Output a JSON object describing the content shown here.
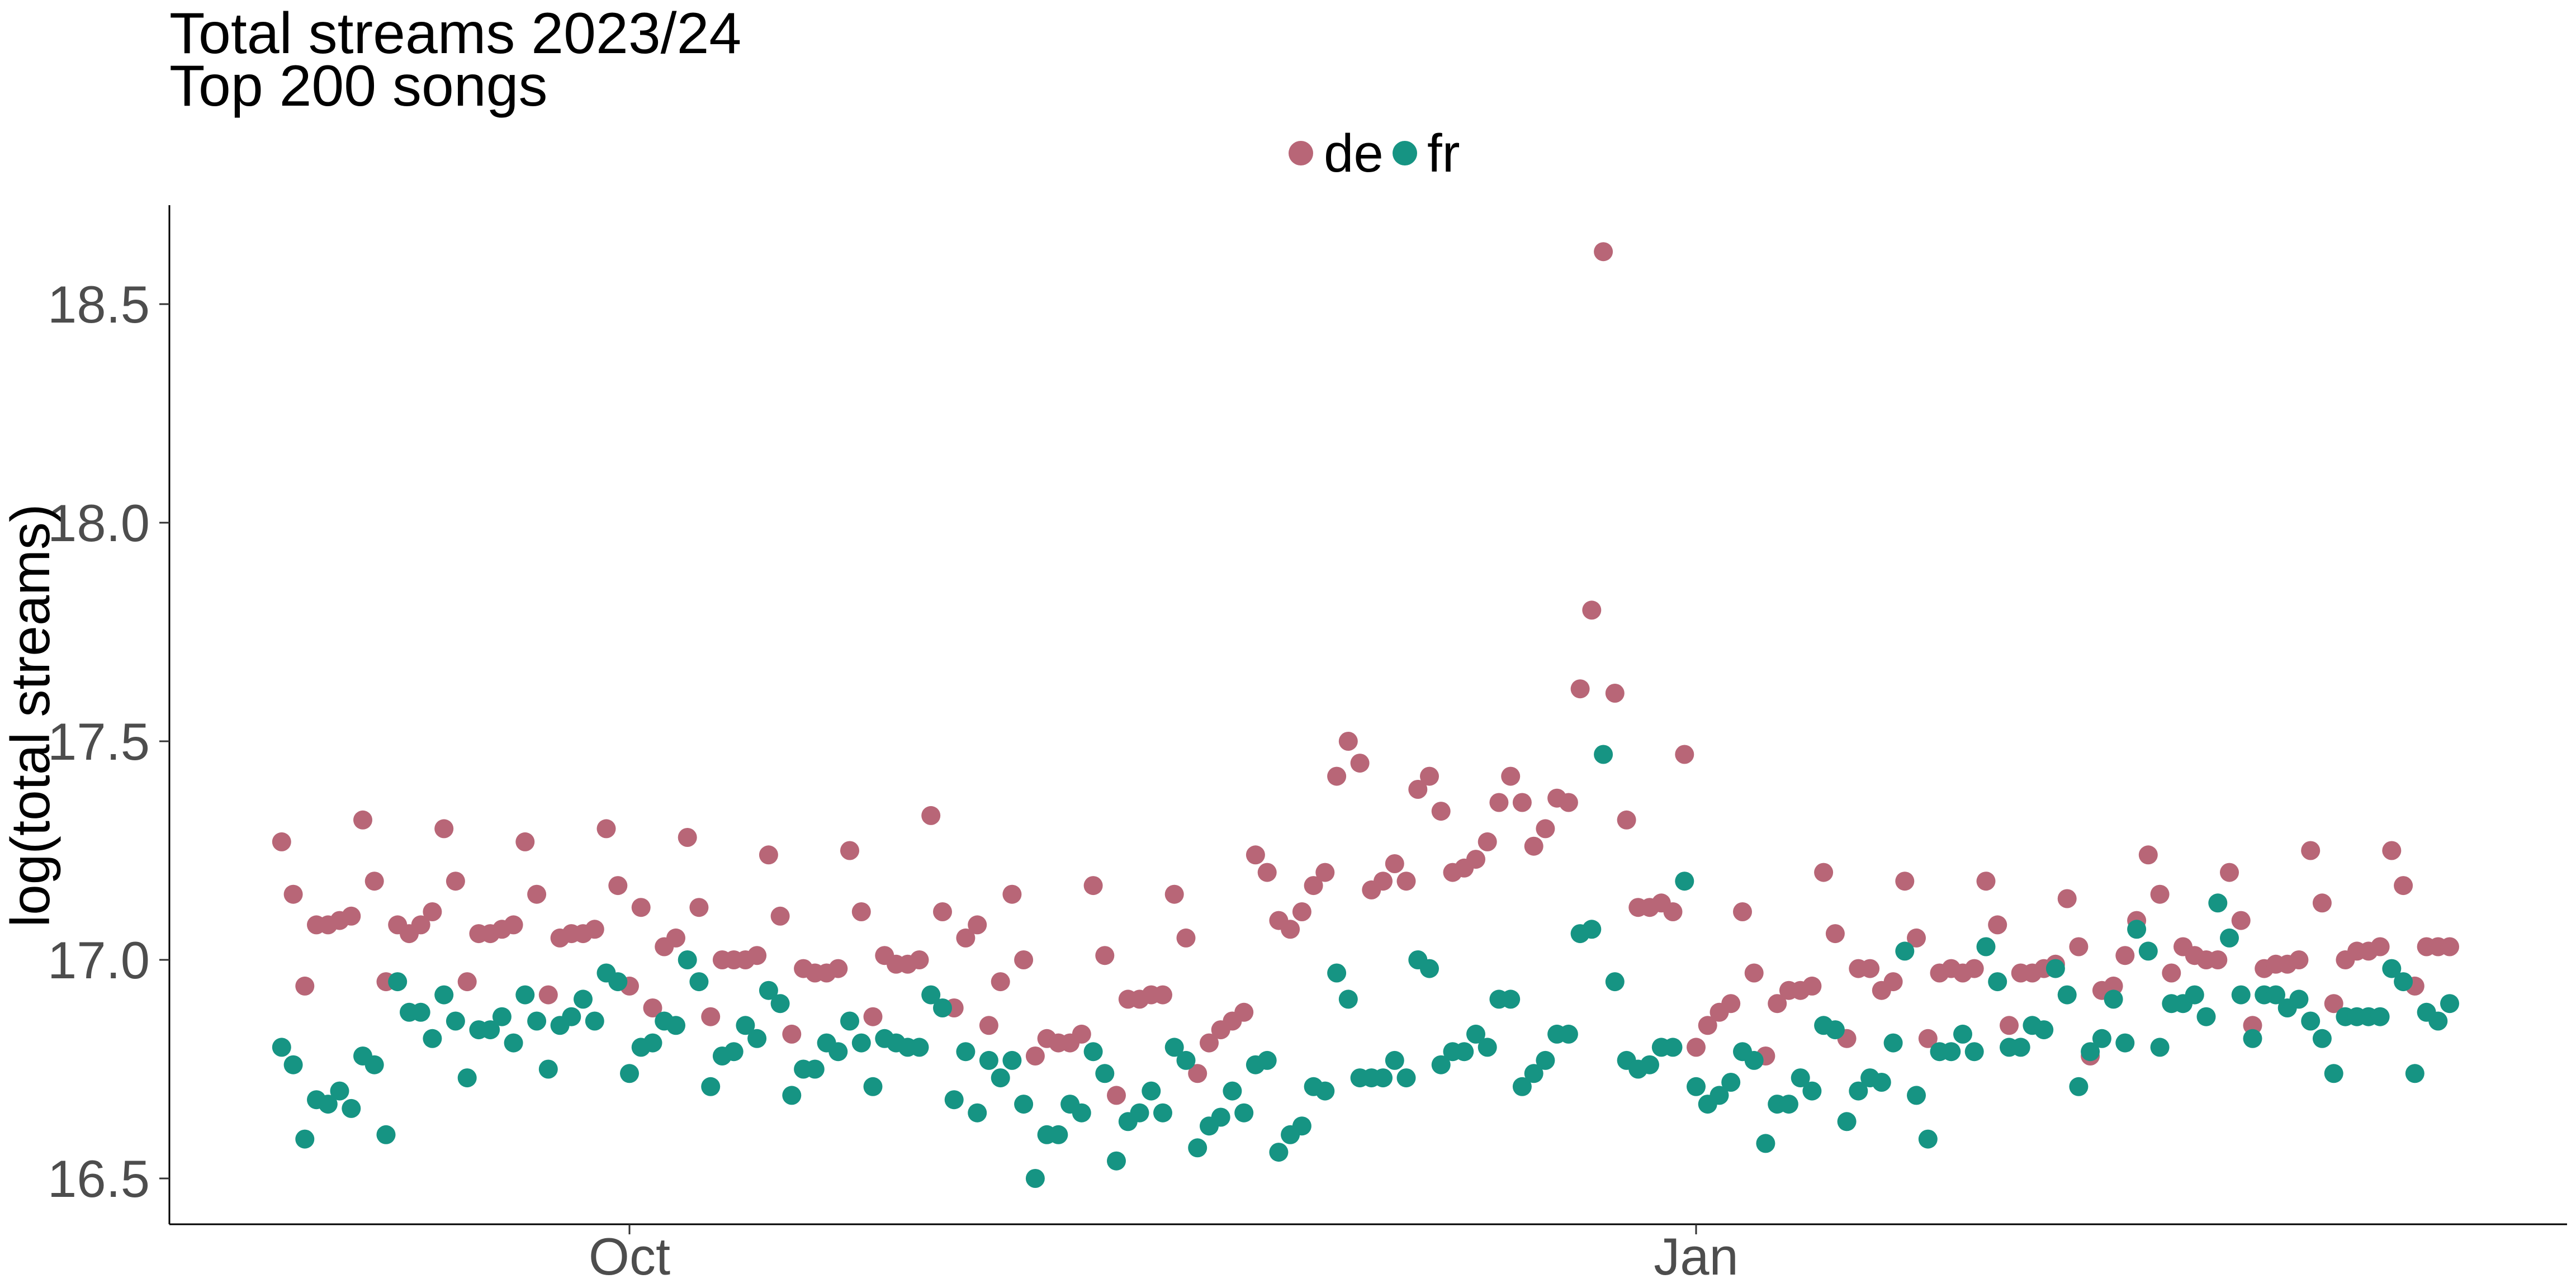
{
  "chart_data": {
    "type": "scatter",
    "title": "Total streams 2023/24",
    "subtitle": "Top 200 songs",
    "xlabel": "",
    "ylabel": "log(total streams)",
    "ylim": [
      16.4,
      18.72
    ],
    "yticks": [
      16.5,
      17.0,
      17.5,
      18.0,
      18.5
    ],
    "ytick_labels": [
      "16.5",
      "17.0",
      "17.5",
      "18.0",
      "18.5"
    ],
    "xticks": [
      "2023-10-01",
      "2024-01-01"
    ],
    "xtick_labels": [
      "Oct",
      "Jan"
    ],
    "xlim": [
      "2023-08-29",
      "2024-03-15"
    ],
    "grid": false,
    "legend": {
      "placement": "top",
      "entries": [
        "de",
        "fr"
      ]
    },
    "x": [
      "2023-09-01",
      "2023-09-02",
      "2023-09-03",
      "2023-09-04",
      "2023-09-05",
      "2023-09-06",
      "2023-09-07",
      "2023-09-08",
      "2023-09-09",
      "2023-09-10",
      "2023-09-11",
      "2023-09-12",
      "2023-09-13",
      "2023-09-14",
      "2023-09-15",
      "2023-09-16",
      "2023-09-17",
      "2023-09-18",
      "2023-09-19",
      "2023-09-20",
      "2023-09-21",
      "2023-09-22",
      "2023-09-23",
      "2023-09-24",
      "2023-09-25",
      "2023-09-26",
      "2023-09-27",
      "2023-09-28",
      "2023-09-29",
      "2023-09-30",
      "2023-10-01",
      "2023-10-02",
      "2023-10-03",
      "2023-10-04",
      "2023-10-05",
      "2023-10-06",
      "2023-10-07",
      "2023-10-08",
      "2023-10-09",
      "2023-10-10",
      "2023-10-11",
      "2023-10-12",
      "2023-10-13",
      "2023-10-14",
      "2023-10-15",
      "2023-10-16",
      "2023-10-17",
      "2023-10-18",
      "2023-10-19",
      "2023-10-20",
      "2023-10-21",
      "2023-10-22",
      "2023-10-23",
      "2023-10-24",
      "2023-10-25",
      "2023-10-26",
      "2023-10-27",
      "2023-10-28",
      "2023-10-29",
      "2023-10-30",
      "2023-10-31",
      "2023-11-01",
      "2023-11-02",
      "2023-11-03",
      "2023-11-04",
      "2023-11-05",
      "2023-11-06",
      "2023-11-07",
      "2023-11-08",
      "2023-11-09",
      "2023-11-10",
      "2023-11-11",
      "2023-11-12",
      "2023-11-13",
      "2023-11-14",
      "2023-11-15",
      "2023-11-16",
      "2023-11-17",
      "2023-11-18",
      "2023-11-19",
      "2023-11-20",
      "2023-11-21",
      "2023-11-22",
      "2023-11-23",
      "2023-11-24",
      "2023-11-25",
      "2023-11-26",
      "2023-11-27",
      "2023-11-28",
      "2023-11-29",
      "2023-11-30",
      "2023-12-01",
      "2023-12-02",
      "2023-12-03",
      "2023-12-04",
      "2023-12-05",
      "2023-12-06",
      "2023-12-07",
      "2023-12-08",
      "2023-12-09",
      "2023-12-10",
      "2023-12-11",
      "2023-12-12",
      "2023-12-13",
      "2023-12-14",
      "2023-12-15",
      "2023-12-16",
      "2023-12-17",
      "2023-12-18",
      "2023-12-19",
      "2023-12-20",
      "2023-12-21",
      "2023-12-22",
      "2023-12-23",
      "2023-12-24",
      "2023-12-25",
      "2023-12-26",
      "2023-12-27",
      "2023-12-28",
      "2023-12-29",
      "2023-12-30",
      "2023-12-31",
      "2024-01-01",
      "2024-01-02",
      "2024-01-03",
      "2024-01-04",
      "2024-01-05",
      "2024-01-06",
      "2024-01-07",
      "2024-01-08",
      "2024-01-09",
      "2024-01-10",
      "2024-01-11",
      "2024-01-12",
      "2024-01-13",
      "2024-01-14",
      "2024-01-15",
      "2024-01-16",
      "2024-01-17",
      "2024-01-18",
      "2024-01-19",
      "2024-01-20",
      "2024-01-21",
      "2024-01-22",
      "2024-01-23",
      "2024-01-24",
      "2024-01-25",
      "2024-01-26",
      "2024-01-27",
      "2024-01-28",
      "2024-01-29",
      "2024-01-30",
      "2024-01-31",
      "2024-02-01",
      "2024-02-02",
      "2024-02-03",
      "2024-02-04",
      "2024-02-05",
      "2024-02-06",
      "2024-02-07",
      "2024-02-08",
      "2024-02-09",
      "2024-02-10",
      "2024-02-11",
      "2024-02-12",
      "2024-02-13",
      "2024-02-14",
      "2024-02-15",
      "2024-02-16",
      "2024-02-17",
      "2024-02-18",
      "2024-02-19",
      "2024-02-20",
      "2024-02-21",
      "2024-02-22",
      "2024-02-23",
      "2024-02-24",
      "2024-02-25",
      "2024-02-26",
      "2024-02-27",
      "2024-02-28",
      "2024-02-29",
      "2024-03-01",
      "2024-03-02",
      "2024-03-03",
      "2024-03-04",
      "2024-03-05",
      "2024-03-06"
    ],
    "series": [
      {
        "name": "de",
        "color": "#B86677",
        "values": [
          17.27,
          17.15,
          16.94,
          17.08,
          17.08,
          17.09,
          17.1,
          17.32,
          17.18,
          16.95,
          17.08,
          17.06,
          17.08,
          17.11,
          17.3,
          17.18,
          16.95,
          17.06,
          17.06,
          17.07,
          17.08,
          17.27,
          17.15,
          16.92,
          17.05,
          17.06,
          17.06,
          17.07,
          17.3,
          17.17,
          16.94,
          17.12,
          16.89,
          17.03,
          17.05,
          17.28,
          17.12,
          16.87,
          17.0,
          17.0,
          17.0,
          17.01,
          17.24,
          17.1,
          16.83,
          16.98,
          16.97,
          16.97,
          16.98,
          17.25,
          17.11,
          16.87,
          17.01,
          16.99,
          16.99,
          17.0,
          17.33,
          17.11,
          16.89,
          17.05,
          17.08,
          16.85,
          16.95,
          17.15,
          17.0,
          16.78,
          16.82,
          16.81,
          16.81,
          16.83,
          17.17,
          17.01,
          16.69,
          16.91,
          16.91,
          16.92,
          16.92,
          17.15,
          17.05,
          16.74,
          16.81,
          16.84,
          16.86,
          16.88,
          17.24,
          17.2,
          17.09,
          17.07,
          17.11,
          17.17,
          17.2,
          17.42,
          17.5,
          17.45,
          17.16,
          17.18,
          17.22,
          17.18,
          17.39,
          17.42,
          17.34,
          17.2,
          17.21,
          17.23,
          17.27,
          17.36,
          17.42,
          17.36,
          17.26,
          17.3,
          17.37,
          17.36,
          17.62,
          17.8,
          18.62,
          17.61,
          17.32,
          17.12,
          17.12,
          17.13,
          17.11,
          17.47,
          16.8,
          16.85,
          16.88,
          16.9,
          17.11,
          16.97,
          16.78,
          16.9,
          16.93,
          16.93,
          16.94,
          17.2,
          17.06,
          16.82,
          16.98,
          16.98,
          16.93,
          16.95,
          17.18,
          17.05,
          16.82,
          16.97,
          16.98,
          16.97,
          16.98,
          17.18,
          17.08,
          16.85,
          16.97,
          16.97,
          16.98,
          16.99,
          17.14,
          17.03,
          16.78,
          16.93,
          16.94,
          17.01,
          17.09,
          17.24,
          17.15,
          16.97,
          17.03,
          17.01,
          17.0,
          17.0,
          17.2,
          17.09,
          16.85,
          16.98,
          16.99,
          16.99,
          17.0,
          17.25,
          17.13,
          16.9,
          17.0,
          17.02,
          17.02,
          17.03,
          17.25,
          17.17,
          16.94,
          17.03,
          17.03,
          17.03
        ]
      },
      {
        "name": "fr",
        "color": "#169483",
        "values": [
          16.8,
          16.76,
          16.59,
          16.68,
          16.67,
          16.7,
          16.66,
          16.78,
          16.76,
          16.6,
          16.95,
          16.88,
          16.88,
          16.82,
          16.92,
          16.86,
          16.73,
          16.84,
          16.84,
          16.87,
          16.81,
          16.92,
          16.86,
          16.75,
          16.85,
          16.87,
          16.91,
          16.86,
          16.97,
          16.95,
          16.74,
          16.8,
          16.81,
          16.86,
          16.85,
          17.0,
          16.95,
          16.71,
          16.78,
          16.79,
          16.85,
          16.82,
          16.93,
          16.9,
          16.69,
          16.75,
          16.75,
          16.81,
          16.79,
          16.86,
          16.81,
          16.71,
          16.82,
          16.81,
          16.8,
          16.8,
          16.92,
          16.89,
          16.68,
          16.79,
          16.65,
          16.77,
          16.73,
          16.77,
          16.67,
          16.5,
          16.6,
          16.6,
          16.67,
          16.65,
          16.79,
          16.74,
          16.54,
          16.63,
          16.65,
          16.7,
          16.65,
          16.8,
          16.77,
          16.57,
          16.62,
          16.64,
          16.7,
          16.65,
          16.76,
          16.77,
          16.56,
          16.6,
          16.62,
          16.71,
          16.7,
          16.97,
          16.91,
          16.73,
          16.73,
          16.73,
          16.77,
          16.73,
          17.0,
          16.98,
          16.76,
          16.79,
          16.79,
          16.83,
          16.8,
          16.91,
          16.91,
          16.71,
          16.74,
          16.77,
          16.83,
          16.83,
          17.06,
          17.07,
          17.47,
          16.95,
          16.77,
          16.75,
          16.76,
          16.8,
          16.8,
          17.18,
          16.71,
          16.67,
          16.69,
          16.72,
          16.79,
          16.77,
          16.58,
          16.67,
          16.67,
          16.73,
          16.7,
          16.85,
          16.84,
          16.63,
          16.7,
          16.73,
          16.72,
          16.81,
          17.02,
          16.69,
          16.59,
          16.79,
          16.79,
          16.83,
          16.79,
          17.03,
          16.95,
          16.8,
          16.8,
          16.85,
          16.84,
          16.98,
          16.92,
          16.71,
          16.79,
          16.82,
          16.91,
          16.81,
          17.07,
          17.02,
          16.8,
          16.9,
          16.9,
          16.92,
          16.87,
          17.13,
          17.05,
          16.92,
          16.82,
          16.92,
          16.92,
          16.89,
          16.91,
          16.86,
          16.82,
          16.74,
          16.87,
          16.87,
          16.87,
          16.87,
          16.98,
          16.95,
          16.74,
          16.88,
          16.86,
          16.9
        ]
      }
    ]
  }
}
